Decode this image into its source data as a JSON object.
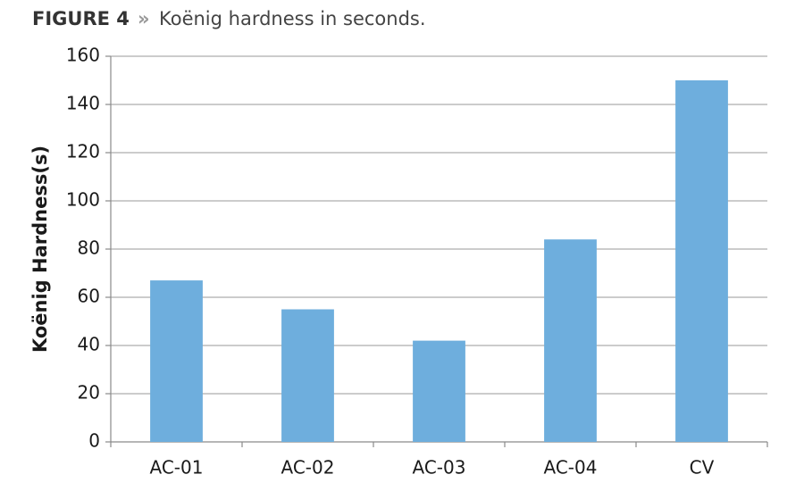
{
  "chart_data": {
    "type": "bar",
    "figure_label": "FIGURE 4",
    "title_separator": "»",
    "title": "Koënig hardness in seconds.",
    "y_label": "Koënig Hardness(s)",
    "categories": [
      "AC-01",
      "AC-02",
      "AC-03",
      "AC-04",
      "CV"
    ],
    "values": [
      67,
      55,
      42,
      84,
      150
    ],
    "color": "#6eaedd",
    "ylim": [
      0,
      160
    ],
    "yticks": [
      0,
      20,
      40,
      60,
      80,
      100,
      120,
      140,
      160
    ],
    "grid": true
  }
}
